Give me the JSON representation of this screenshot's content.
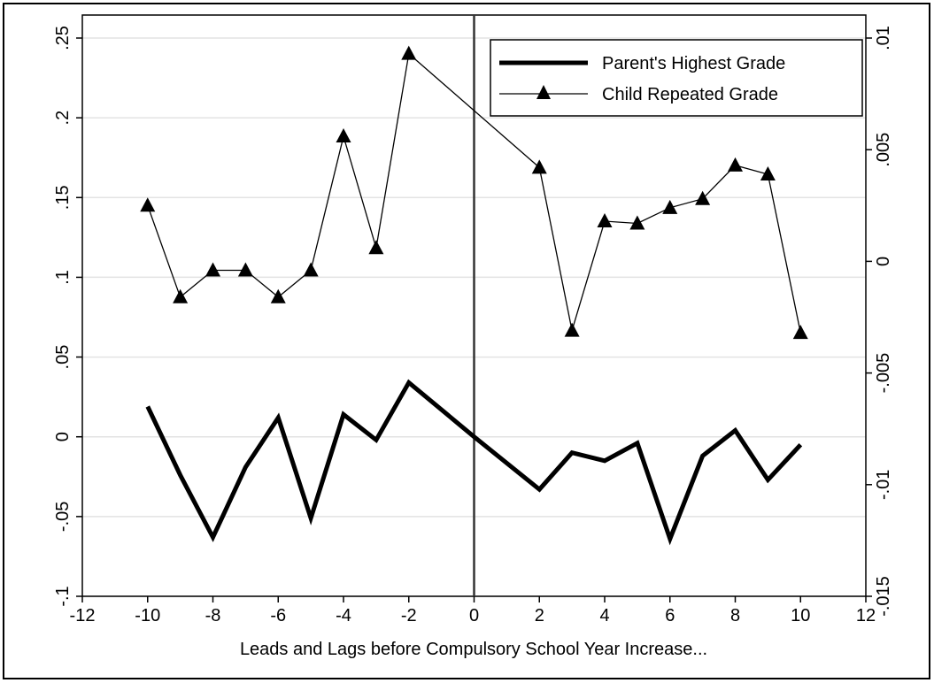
{
  "chart_data": {
    "type": "line",
    "title": "",
    "xlabel": "Leads and Lags before Compulsory School Year Increase...",
    "ylabel_left": "",
    "ylabel_right": "",
    "xlim": [
      -12,
      12
    ],
    "ylim_left": [
      -0.1,
      0.25
    ],
    "ylim_right": [
      -0.015,
      0.01
    ],
    "x_ticks": [
      "-12",
      "-10",
      "-8",
      "-6",
      "-4",
      "-2",
      "0",
      "2",
      "4",
      "6",
      "8",
      "10",
      "12"
    ],
    "y_left_ticks": [
      "-.1",
      "-.05",
      "0",
      ".05",
      ".1",
      ".15",
      ".2",
      ".25"
    ],
    "y_right_ticks": [
      "-.015",
      "-.01",
      "-.005",
      "0",
      ".005",
      ".01"
    ],
    "grid": true,
    "vertical_reference_line_x": 0,
    "legend_position": "top-right",
    "series": [
      {
        "name": "Parent's Highest Grade",
        "axis": "left",
        "style": "thick-line",
        "x": [
          -10,
          -9,
          -8,
          -7,
          -6,
          -5,
          -4,
          -3,
          -2,
          0,
          2,
          3,
          4,
          5,
          6,
          7,
          8,
          9,
          10
        ],
        "values": [
          0.019,
          -0.024,
          -0.063,
          -0.019,
          0.012,
          -0.051,
          0.014,
          -0.002,
          0.034,
          0.0,
          -0.033,
          -0.01,
          -0.015,
          -0.004,
          -0.064,
          -0.012,
          0.004,
          -0.027,
          -0.005
        ]
      },
      {
        "name": "Child Repeated Grade",
        "axis": "right",
        "style": "thin-line-triangle",
        "x": [
          -10,
          -9,
          -8,
          -7,
          -6,
          -5,
          -2.00001,
          -4,
          -3,
          -2,
          2,
          3,
          4,
          5,
          6,
          7,
          8,
          9,
          10
        ],
        "values": [
          0.0025,
          -0.0016,
          -0.0004,
          -0.0004,
          -0.0016,
          -0.0004,
          0.0093,
          0.0056,
          0.0006,
          0.0093,
          0.0042,
          -0.0031,
          0.0018,
          0.0017,
          0.0024,
          0.0028,
          0.0043,
          0.0039,
          -0.0032
        ]
      }
    ]
  }
}
